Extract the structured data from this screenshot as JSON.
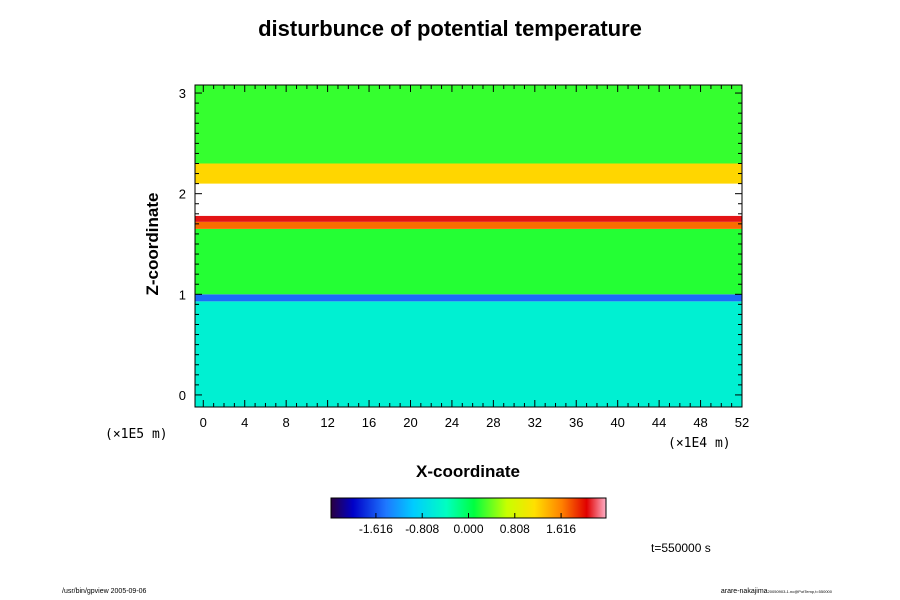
{
  "chart_data": {
    "type": "heatmap",
    "title": "disturbunce of potential temperature",
    "xlabel": "X-coordinate",
    "ylabel": "Z-coordinate",
    "x_unit_label": "(×1E4 m)",
    "y_unit_label": "(×1E5 m)",
    "xlim": [
      -0.8,
      52
    ],
    "ylim": [
      -0.12,
      3.08
    ],
    "x_ticks": [
      "0",
      "4",
      "8",
      "12",
      "16",
      "20",
      "24",
      "28",
      "32",
      "36",
      "40",
      "44",
      "48",
      "52"
    ],
    "y_ticks": [
      "0",
      "1",
      "2",
      "3"
    ],
    "colorbar": {
      "ticks": [
        "-1.616",
        "-0.808",
        "0.000",
        "0.808",
        "1.616"
      ],
      "range": [
        -2.4,
        2.4
      ]
    },
    "bands": [
      {
        "z_from": -0.12,
        "z_to": 0.93,
        "value": -0.55
      },
      {
        "z_from": 0.93,
        "z_to": 1.0,
        "value": -1.5
      },
      {
        "z_from": 1.0,
        "z_to": 1.65,
        "value": 0.2
      },
      {
        "z_from": 1.65,
        "z_to": 1.72,
        "value": 1.7
      },
      {
        "z_from": 1.72,
        "z_to": 1.78,
        "value": 2.1
      },
      {
        "z_from": 1.78,
        "z_to": 2.1,
        "value": 2.6
      },
      {
        "z_from": 2.1,
        "z_to": 2.3,
        "value": 1.2
      },
      {
        "z_from": 2.3,
        "z_to": 3.08,
        "value": 0.25
      }
    ]
  },
  "annotation_time": "t=550000 s",
  "footer_left": "/usr/bin/gpview 2005-09-06",
  "footer_right_main": "arare-nakajima",
  "footer_right_small": "20050903-1.nc@PotTemp,t=550000"
}
